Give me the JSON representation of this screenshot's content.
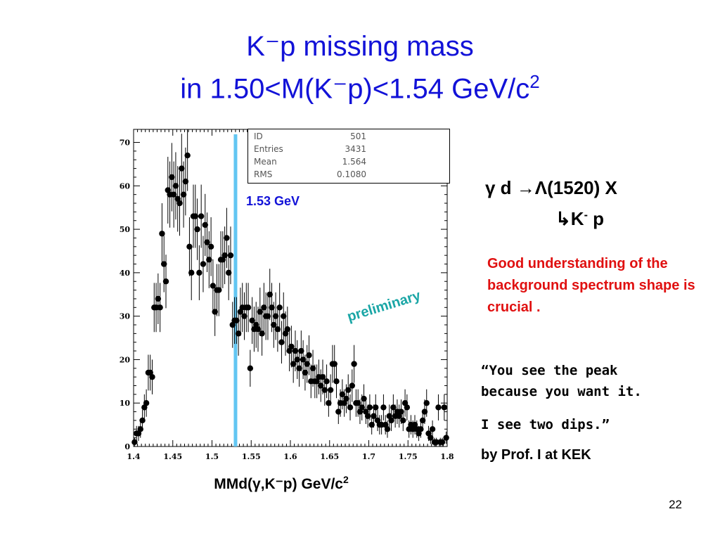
{
  "slide": {
    "title_line1": "K⁻p missing mass",
    "title_line2_prefix": "in 1.50<M(K⁻p)<1.54 GeV/c",
    "title_line2_sup": "2",
    "reaction_line1_a": "γ d ",
    "reaction_line1_arrow": "→",
    "reaction_line1_b": "Λ(1520) X",
    "reaction_line2_arrow": "↳",
    "reaction_line2_a": "K",
    "reaction_line2_sup": "-",
    "reaction_line2_b": " p",
    "red_note": "Good understanding of the background spectrum shape is crucial .",
    "quote_line1": "“You see the peak",
    "quote_line2": "because you want it.",
    "quote_line3": "I see two dips.”",
    "byline": "by Prof. I at KEK",
    "page_number": "22",
    "preliminary": "preliminary",
    "energy_marker_label": "1.53 GeV",
    "x_axis_title_prefix": "MMd(γ,K⁻p)  GeV/c",
    "x_axis_title_sup": "2"
  },
  "stats": [
    {
      "label": "ID",
      "value": "501"
    },
    {
      "label": "Entries",
      "value": "3431"
    },
    {
      "label": "Mean",
      "value": "1.564"
    },
    {
      "label": "RMS",
      "value": "0.1080"
    }
  ],
  "colors": {
    "title": "#1212d8",
    "marker_line": "#62c6f2",
    "red_note": "#e01010",
    "preliminary": "#1aa6a6"
  },
  "chart_data": {
    "type": "scatter",
    "style": "histogram points with error bars",
    "xlim": [
      1.4,
      1.8
    ],
    "ylim": [
      0,
      73
    ],
    "xticks": [
      "1.4",
      "1.45",
      "1.5",
      "1.55",
      "1.6",
      "1.65",
      "1.7",
      "1.75",
      "1.8"
    ],
    "xtick_values": [
      1.4,
      1.45,
      1.5,
      1.55,
      1.6,
      1.65,
      1.7,
      1.75,
      1.8
    ],
    "yticks": [
      "0",
      "10",
      "20",
      "30",
      "40",
      "50",
      "60",
      "70"
    ],
    "ytick_values": [
      0,
      10,
      20,
      30,
      40,
      50,
      60,
      70
    ],
    "grid": false,
    "vertical_marker_x": 1.53,
    "bin_width": 0.0025,
    "counts": [
      1,
      3,
      3,
      4,
      6,
      9,
      10,
      17,
      17,
      16,
      32,
      32,
      34,
      32,
      49,
      42,
      38,
      59,
      58,
      62,
      58,
      60,
      57,
      56,
      64,
      58,
      61,
      67,
      46,
      40,
      53,
      53,
      50,
      40,
      53,
      42,
      51,
      47,
      43,
      46,
      37,
      31,
      36,
      36,
      43,
      43,
      44,
      48,
      40,
      44,
      28,
      29,
      29,
      26,
      31,
      32,
      30,
      32,
      32,
      18,
      29,
      27,
      28,
      27,
      31,
      26,
      32,
      30,
      30,
      35,
      32,
      28,
      30,
      27,
      32,
      24,
      30,
      26,
      27,
      22,
      23,
      19,
      22,
      20,
      18,
      22,
      20,
      17,
      19,
      21,
      15,
      18,
      15,
      15,
      16,
      14,
      16,
      13,
      15,
      10,
      13,
      19,
      19,
      15,
      8,
      10,
      12,
      10,
      11,
      13,
      9,
      14,
      19,
      10,
      10,
      8,
      9,
      11,
      8,
      7,
      9,
      5,
      7,
      9,
      6,
      5,
      5,
      9,
      5,
      4,
      7,
      6,
      9,
      7,
      8,
      7,
      8,
      6,
      10,
      9,
      4,
      5,
      4,
      5,
      4,
      3,
      4,
      6,
      8,
      10,
      3,
      2,
      4,
      1,
      1,
      9,
      1,
      1,
      9,
      2
    ]
  }
}
